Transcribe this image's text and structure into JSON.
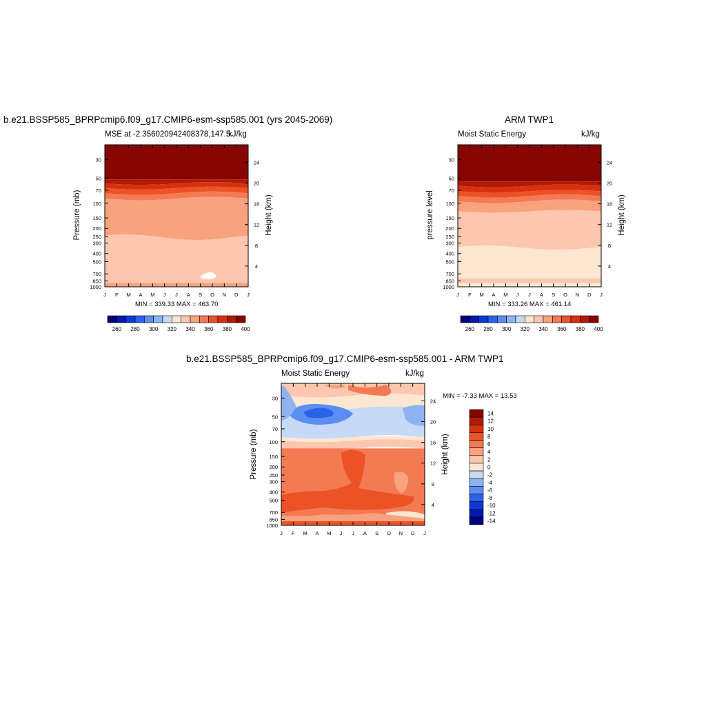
{
  "panels": {
    "model": {
      "title": "b.e21.BSSP585_BPRPcmip6.f09_g17.CMIP6-esm-ssp585.001 (yrs 2045-2069)",
      "left_subtitle": "MSE at -2.356020942408378,147.5",
      "right_subtitle": "kJ/kg",
      "ylabel": "Pressure (mb)",
      "y2label": "Height (km)",
      "minmax": "MIN = 339.33 MAX = 463.70"
    },
    "obs": {
      "title": "ARM TWP1",
      "left_subtitle": "Moist Static Energy",
      "right_subtitle": "kJ/kg",
      "ylabel": "pressure level",
      "y2label": "Height (km)",
      "minmax": "MIN = 333.26 MAX = 461.14"
    },
    "diff": {
      "title": "b.e21.BSSP585_BPRPcmip6.f09_g17.CMIP6-esm-ssp585.001 - ARM TWP1",
      "left_subtitle": "Moist Static Energy",
      "right_subtitle": "kJ/kg",
      "ylabel": "Pressure (mb)",
      "y2label": "Height (km)",
      "minmax": "MIN =  -7.33 MAX =  13.53"
    }
  },
  "chart_data": [
    {
      "type": "heatmap",
      "title": "b.e21.BSSP585_BPRPcmip6.f09_g17.CMIP6-esm-ssp585.001 (yrs 2045-2069)",
      "variable": "MSE at -2.356020942408378,147.5",
      "units": "kJ/kg",
      "x_ticks": [
        "J",
        "F",
        "M",
        "A",
        "M",
        "J",
        "J",
        "A",
        "S",
        "O",
        "N",
        "D",
        "J"
      ],
      "y_ticks_pressure_mb": [
        30,
        50,
        70,
        100,
        150,
        200,
        250,
        300,
        400,
        500,
        700,
        850,
        1000
      ],
      "y2_ticks_height_km": [
        4,
        8,
        12,
        16,
        20,
        24
      ],
      "ylim": [
        1000,
        20
      ],
      "contour_levels": [
        260,
        270,
        280,
        290,
        300,
        310,
        320,
        330,
        340,
        350,
        360,
        370,
        380,
        390,
        400
      ],
      "colorbar_labels": [
        "260",
        "280",
        "300",
        "320",
        "340",
        "360",
        "380",
        "400"
      ],
      "min": 339.33,
      "max": 463.7,
      "colors": [
        "#00007f",
        "#0018b0",
        "#0a3ad6",
        "#2a62e8",
        "#5a8ef0",
        "#8fb3f2",
        "#c6d9f6",
        "#fde6d2",
        "#fcc7ae",
        "#f8a27e",
        "#f47a54",
        "#ec5226",
        "#d8310e",
        "#b01a06",
        "#870500"
      ]
    },
    {
      "type": "heatmap",
      "title": "ARM TWP1",
      "variable": "Moist Static Energy",
      "units": "kJ/kg",
      "x_ticks": [
        "J",
        "F",
        "M",
        "A",
        "M",
        "J",
        "J",
        "A",
        "S",
        "O",
        "N",
        "D",
        "J"
      ],
      "y_ticks_pressure_mb": [
        30,
        50,
        70,
        100,
        150,
        200,
        250,
        300,
        400,
        500,
        700,
        850,
        1000
      ],
      "y2_ticks_height_km": [
        4,
        8,
        12,
        16,
        20,
        24
      ],
      "ylim": [
        1000,
        20
      ],
      "contour_levels": [
        260,
        270,
        280,
        290,
        300,
        310,
        320,
        330,
        340,
        350,
        360,
        370,
        380,
        390,
        400
      ],
      "colorbar_labels": [
        "260",
        "280",
        "300",
        "320",
        "340",
        "360",
        "380",
        "400"
      ],
      "min": 333.26,
      "max": 461.14
    },
    {
      "type": "heatmap",
      "title": "b.e21.BSSP585_BPRPcmip6.f09_g17.CMIP6-esm-ssp585.001 - ARM TWP1",
      "variable": "Moist Static Energy",
      "units": "kJ/kg",
      "x_ticks": [
        "J",
        "F",
        "M",
        "A",
        "M",
        "J",
        "J",
        "A",
        "S",
        "O",
        "N",
        "D",
        "J"
      ],
      "y_ticks_pressure_mb": [
        30,
        50,
        70,
        100,
        150,
        200,
        250,
        300,
        400,
        500,
        700,
        850,
        1000
      ],
      "y2_ticks_height_km": [
        4,
        8,
        12,
        16,
        20,
        24
      ],
      "ylim": [
        1000,
        20
      ],
      "contour_levels": [
        -14,
        -12,
        -10,
        -8,
        -6,
        -4,
        -2,
        0,
        2,
        4,
        6,
        8,
        10,
        12,
        14
      ],
      "colorbar_labels": [
        "14",
        "12",
        "10",
        "8",
        "6",
        "4",
        "2",
        "0",
        "-2",
        "-4",
        "-6",
        "-8",
        "-10",
        "-12",
        "-14"
      ],
      "min": -7.33,
      "max": 13.53,
      "colors": [
        "#870500",
        "#b01a06",
        "#d8310e",
        "#ec5226",
        "#f47a54",
        "#f8a27e",
        "#fcc7ae",
        "#fde6d2",
        "#c6d9f6",
        "#8fb3f2",
        "#5a8ef0",
        "#2a62e8",
        "#0a3ad6",
        "#0018b0",
        "#00007f"
      ]
    }
  ]
}
